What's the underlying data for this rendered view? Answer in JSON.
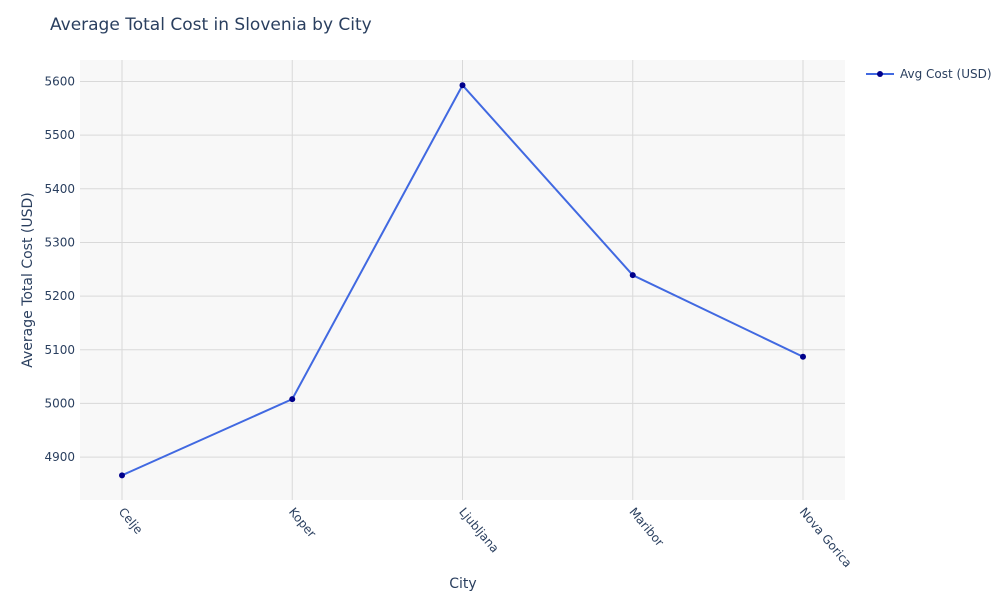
{
  "chart_data": {
    "type": "line",
    "title": "Average Total Cost in Slovenia by City",
    "xlabel": "City",
    "ylabel": "Average Total Cost (USD)",
    "categories": [
      "Celje",
      "Koper",
      "Ljubljana",
      "Maribor",
      "Nova Gorica"
    ],
    "series": [
      {
        "name": "Avg Cost (USD)",
        "values": [
          4866,
          5008,
          5593,
          5239,
          5087
        ]
      }
    ],
    "ylim": [
      4820,
      5640
    ],
    "yticks": [
      4900,
      5000,
      5100,
      5200,
      5300,
      5400,
      5500,
      5600
    ],
    "grid": true,
    "legend": "top-right",
    "colors": {
      "line": "#4169e1",
      "marker": "#00008b",
      "plot_bg": "#f8f8f8",
      "grid": "#d9d9d9",
      "text": "#2a3f5f"
    }
  }
}
